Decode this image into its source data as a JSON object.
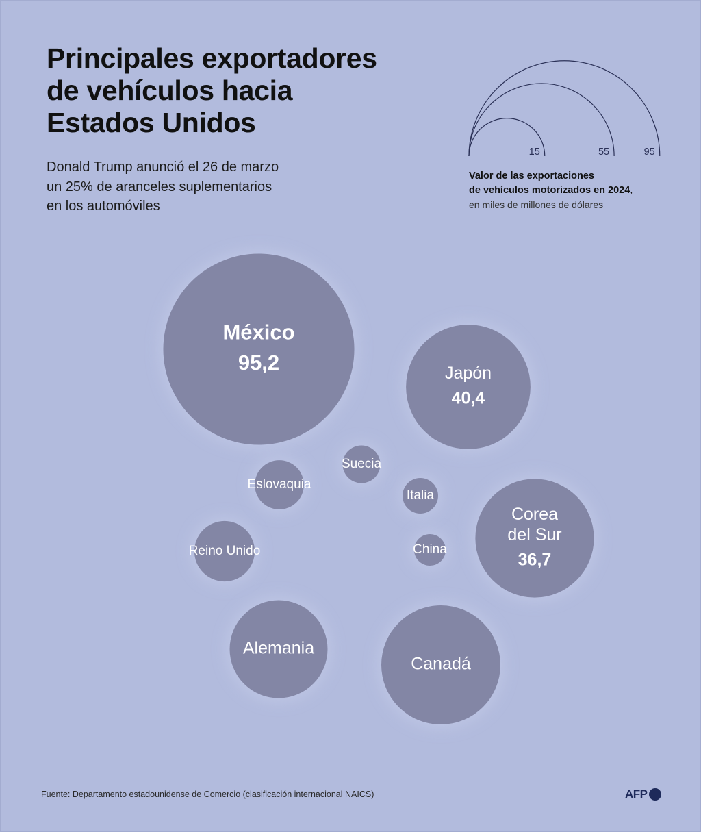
{
  "header": {
    "title_lines": [
      "Principales exportadores",
      "de vehículos hacia",
      "Estados Unidos"
    ],
    "subtitle_lines": [
      "Donald Trump anunció el 26 de marzo",
      "un 25% de aranceles suplementarios",
      "en los automóviles"
    ]
  },
  "legend": {
    "ticks": [
      15,
      55,
      95
    ],
    "tick_labels": [
      "15",
      "55",
      "95"
    ],
    "label_bold_1": "Valor de las exportaciones",
    "label_bold_2": "de vehículos motorizados en 2024",
    "label_bold_suffix": ",",
    "label_normal": "en miles de millones de dólares"
  },
  "colors": {
    "background": "#b2bbdd",
    "bubble": "#8386a5",
    "bubble_label": "#ffffff",
    "legend_stroke": "#2b3157",
    "afp": "#1e2a5a"
  },
  "chart_data": {
    "type": "bubble",
    "unit": "miles de millones de dólares",
    "series": [
      {
        "name_lines": [
          "México"
        ],
        "value": 95.2,
        "value_label": "95,2"
      },
      {
        "name_lines": [
          "Japón"
        ],
        "value": 40.4,
        "value_label": "40,4"
      },
      {
        "name_lines": [
          "Corea",
          "del Sur"
        ],
        "value": 36.7,
        "value_label": "36,7"
      },
      {
        "name_lines": [
          "Canadá"
        ],
        "value": 37
      },
      {
        "name_lines": [
          "Alemania"
        ],
        "value": 25
      },
      {
        "name_lines": [
          "Reino Unido"
        ],
        "value": 9.5
      },
      {
        "name_lines": [
          "Eslovaquia"
        ],
        "value": 6.3
      },
      {
        "name_lines": [
          "Suecia"
        ],
        "value": 3.7
      },
      {
        "name_lines": [
          "Italia"
        ],
        "value": 3.3
      },
      {
        "name_lines": [
          "China"
        ],
        "value": 2.6
      }
    ]
  },
  "footer": {
    "source": "Fuente: Departamento estadounidense de Comercio (clasificación internacional NAICS)",
    "logo_text": "AFP"
  }
}
